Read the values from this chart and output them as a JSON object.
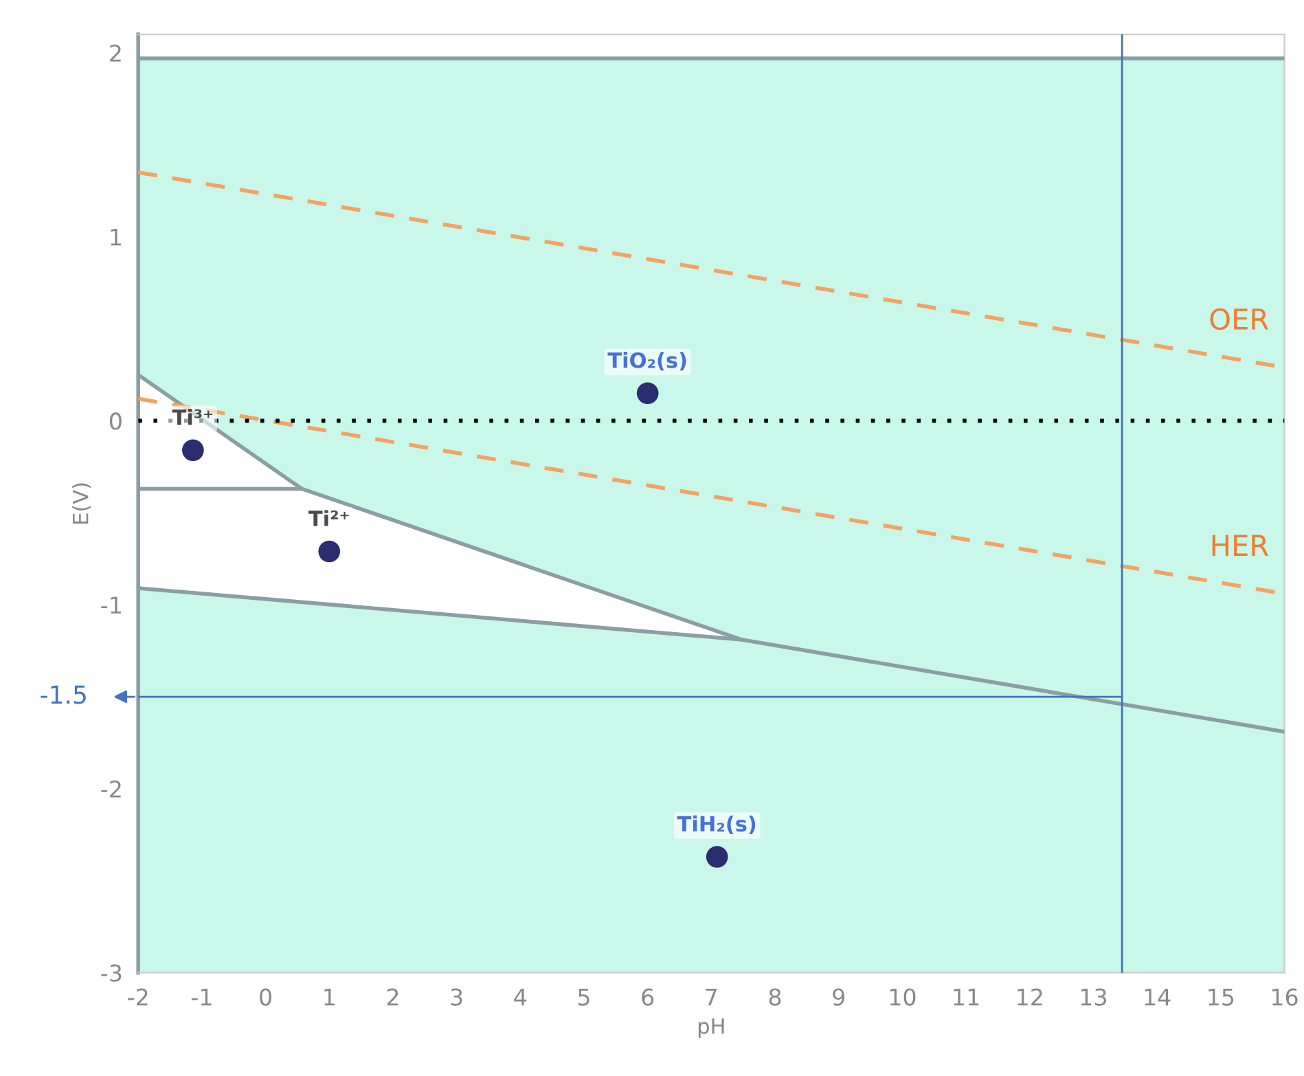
{
  "chart_data": {
    "type": "line",
    "xlabel": "pH",
    "ylabel": "E(V)",
    "xlim": [
      -2,
      16
    ],
    "ylim": [
      -3,
      2.1
    ],
    "xticks": [
      -2,
      -1,
      0,
      1,
      2,
      3,
      4,
      5,
      6,
      7,
      8,
      9,
      10,
      11,
      12,
      13,
      14,
      15,
      16
    ],
    "yticks": [
      -3,
      -2,
      -1,
      0,
      1,
      2
    ],
    "grid": false,
    "legend": false,
    "series": [
      {
        "color": "#8c9da3",
        "line_style": "solid",
        "x": [
          -2,
          16
        ],
        "values": [
          1.97,
          1.97
        ]
      },
      {
        "color": "#8c9da3",
        "line_style": "solid",
        "x": [
          -2,
          0.57,
          7.48
        ],
        "values": [
          0.25,
          -0.37,
          -1.19
        ]
      },
      {
        "color": "#8c9da3",
        "line_style": "solid",
        "x": [
          -2,
          0.57
        ],
        "values": [
          -0.37,
          -0.37
        ]
      },
      {
        "color": "#8c9da3",
        "line_style": "solid",
        "x": [
          -2,
          7.48,
          16
        ],
        "values": [
          -0.91,
          -1.19,
          -1.69
        ]
      },
      {
        "name": "OER",
        "color": "#f4a261",
        "line_style": "dashed",
        "x": [
          -2,
          16
        ],
        "values": [
          1.35,
          0.29
        ]
      },
      {
        "name": "HER",
        "color": "#f4a261",
        "line_style": "dashed",
        "x": [
          -2,
          16
        ],
        "values": [
          0.12,
          -0.94
        ]
      },
      {
        "type": "scatter",
        "color": "#2b2d6e",
        "marker": "circle",
        "x": [
          -1.14,
          1.0,
          6.0,
          7.09
        ],
        "values": [
          -0.16,
          -0.71,
          0.15,
          -2.37
        ]
      }
    ],
    "ref_lines": [
      {
        "axis": "y",
        "value": 0,
        "color": "#000000",
        "line_style": "dotted"
      },
      {
        "axis": "x",
        "value": 13.45,
        "color": "#4472c4",
        "line_style": "solid"
      },
      {
        "axis": "y",
        "value": -1.5,
        "label": "-1.5",
        "color": "#4472c4",
        "line_style": "solid"
      }
    ],
    "annotations": [
      {
        "text": "Ti³⁺",
        "x": -1.14,
        "y": -0.16
      },
      {
        "text": "Ti²⁺",
        "x": 1.0,
        "y": -0.71
      },
      {
        "text": "TiO₂(s)",
        "x": 6.0,
        "y": 0.15
      },
      {
        "text": "TiH₂(s)",
        "x": 7.09,
        "y": -2.37
      }
    ]
  }
}
